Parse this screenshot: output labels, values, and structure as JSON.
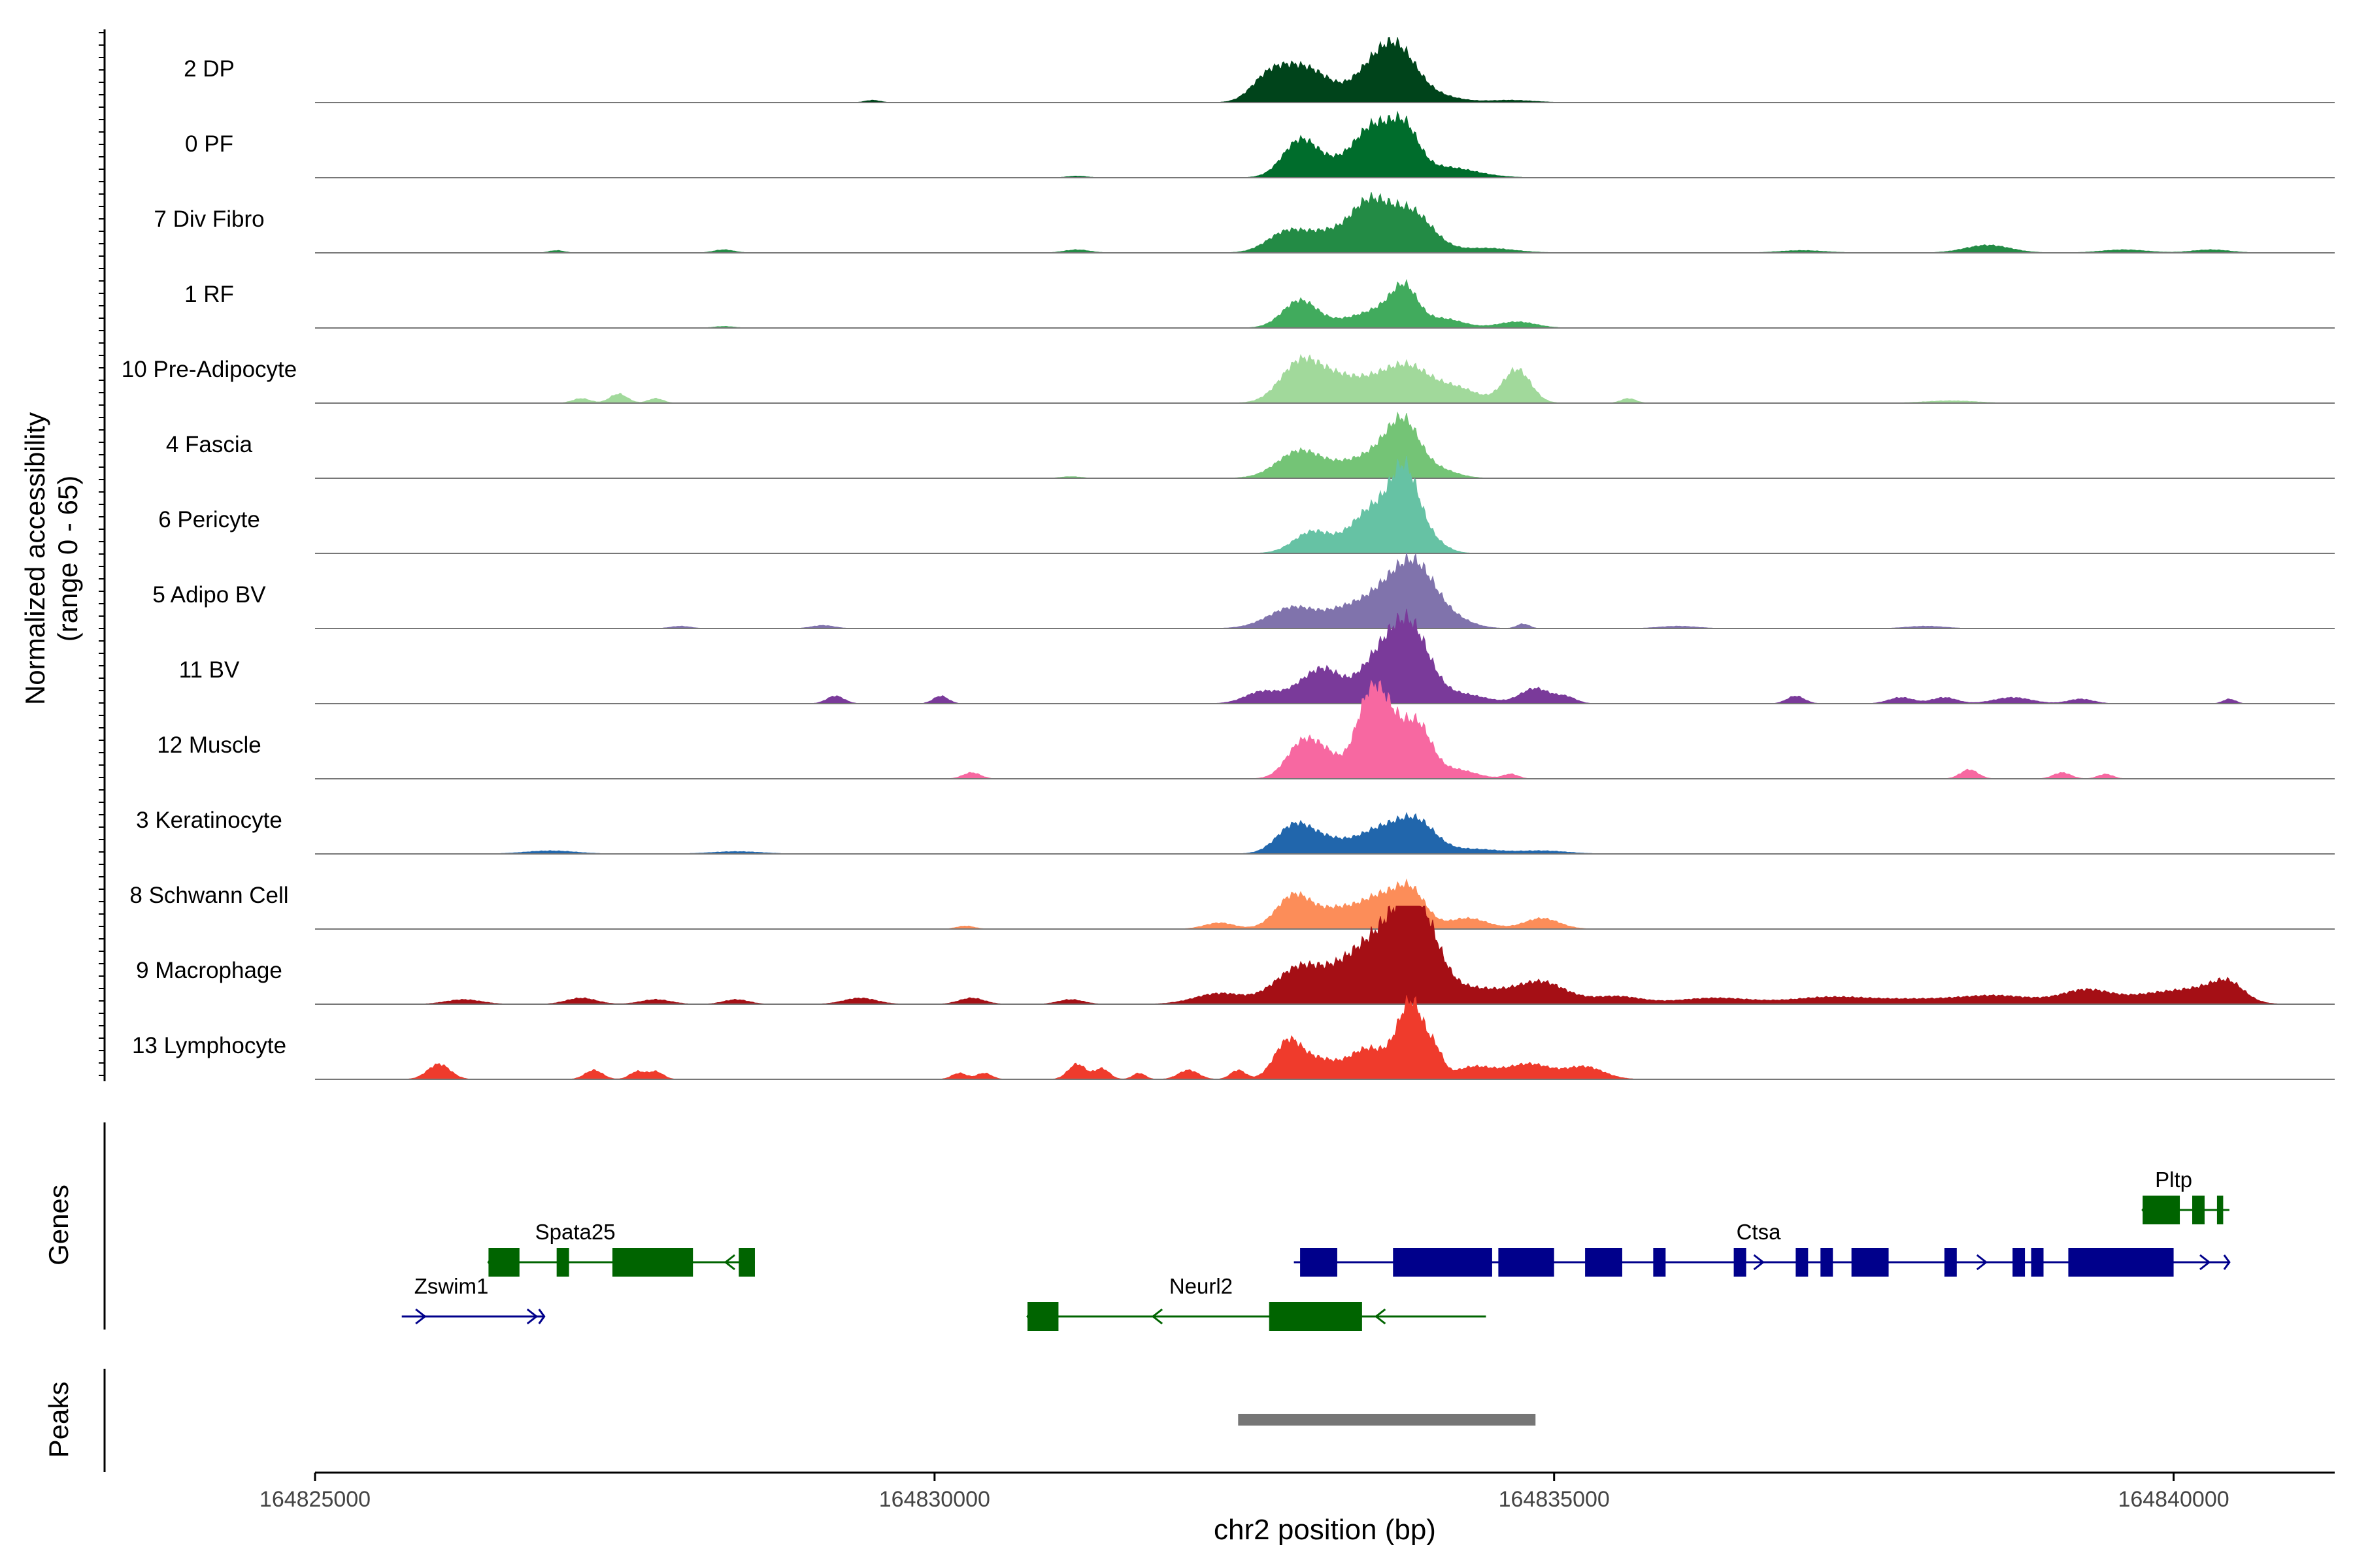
{
  "chart_data": {
    "type": "area",
    "title": "",
    "ylabel": "Normalized accessibility",
    "ylabel_range": "(range 0 - 65)",
    "ylim": [
      0,
      65
    ],
    "xlabel": "chr2 position (bp)",
    "xlim": [
      164825000,
      164841300
    ],
    "x_ticks": [
      164825000,
      164830000,
      164835000,
      164840000
    ],
    "x_tick_labels": [
      "164825000",
      "164830000",
      "164835000",
      "164840000"
    ],
    "track_labels": {
      "genes": "Genes",
      "peaks": "Peaks"
    },
    "series": [
      {
        "name": "2 DP",
        "color": "#00441b",
        "peaks": [
          [
            164829500,
            1.5,
            60
          ],
          [
            164832650,
            8,
            120
          ],
          [
            164832850,
            21,
            170
          ],
          [
            164833100,
            12,
            140
          ],
          [
            164833550,
            22,
            180
          ],
          [
            164833750,
            24,
            150
          ],
          [
            164834000,
            5,
            200
          ],
          [
            164834650,
            1.5,
            180
          ]
        ]
      },
      {
        "name": "0 PF",
        "color": "#006d2c",
        "peaks": [
          [
            164831150,
            1,
            80
          ],
          [
            164832950,
            24,
            140
          ],
          [
            164833250,
            8,
            160
          ],
          [
            164833550,
            32,
            150
          ],
          [
            164833800,
            26,
            110
          ],
          [
            164834100,
            7,
            250
          ]
        ]
      },
      {
        "name": "7 Div Fibro",
        "color": "#238b45",
        "peaks": [
          [
            164826950,
            1.5,
            60
          ],
          [
            164828300,
            2,
            80
          ],
          [
            164831150,
            2,
            100
          ],
          [
            164832850,
            14,
            160
          ],
          [
            164833150,
            10,
            140
          ],
          [
            164833500,
            32,
            160
          ],
          [
            164833850,
            26,
            170
          ],
          [
            164834450,
            3,
            220
          ],
          [
            164837000,
            1.5,
            180
          ],
          [
            164838500,
            5,
            180
          ],
          [
            164839600,
            2,
            180
          ],
          [
            164840300,
            2,
            150
          ]
        ]
      },
      {
        "name": "1 RF",
        "color": "#41ab5d",
        "peaks": [
          [
            164828300,
            1,
            80
          ],
          [
            164832950,
            18,
            140
          ],
          [
            164833350,
            5,
            160
          ],
          [
            164833650,
            12,
            160
          ],
          [
            164833800,
            20,
            100
          ],
          [
            164834100,
            6,
            160
          ],
          [
            164834700,
            4,
            150
          ]
        ]
      },
      {
        "name": "10 Pre-Adipocyte",
        "color": "#a1d99b",
        "peaks": [
          [
            164827150,
            3,
            70
          ],
          [
            164827450,
            6,
            70
          ],
          [
            164827750,
            3,
            60
          ],
          [
            164832950,
            26,
            160
          ],
          [
            164833250,
            14,
            170
          ],
          [
            164833600,
            14,
            180
          ],
          [
            164833850,
            18,
            160
          ],
          [
            164834200,
            10,
            180
          ],
          [
            164834700,
            22,
            110
          ],
          [
            164835600,
            3,
            60
          ],
          [
            164838200,
            1.5,
            200
          ]
        ]
      },
      {
        "name": "4 Fascia",
        "color": "#74c476",
        "peaks": [
          [
            164831100,
            1,
            80
          ],
          [
            164832950,
            18,
            180
          ],
          [
            164833350,
            8,
            160
          ],
          [
            164833650,
            18,
            160
          ],
          [
            164833800,
            26,
            120
          ],
          [
            164834050,
            6,
            150
          ]
        ]
      },
      {
        "name": "6 Pericyte",
        "color": "#66c2a4",
        "peaks": [
          [
            164833050,
            14,
            150
          ],
          [
            164833550,
            30,
            180
          ],
          [
            164833800,
            45,
            110
          ],
          [
            164834000,
            8,
            120
          ]
        ]
      },
      {
        "name": "5 Adipo BV",
        "color": "#8073ac",
        "peaks": [
          [
            164827950,
            1.5,
            80
          ],
          [
            164829100,
            2,
            90
          ],
          [
            164832900,
            14,
            200
          ],
          [
            164833300,
            8,
            150
          ],
          [
            164833650,
            24,
            200
          ],
          [
            164833900,
            32,
            160
          ],
          [
            164834200,
            5,
            150
          ],
          [
            164834750,
            3,
            50
          ],
          [
            164836000,
            1.5,
            150
          ],
          [
            164838000,
            1.5,
            150
          ]
        ]
      },
      {
        "name": "11 BV",
        "color": "#7a3a9a",
        "peaks": [
          [
            164829200,
            5,
            70
          ],
          [
            164830050,
            5,
            60
          ],
          [
            164832650,
            8,
            140
          ],
          [
            164832950,
            8,
            120
          ],
          [
            164833150,
            20,
            130
          ],
          [
            164833600,
            30,
            180
          ],
          [
            164833850,
            42,
            150
          ],
          [
            164834250,
            6,
            200
          ],
          [
            164834850,
            10,
            120
          ],
          [
            164835100,
            4,
            80
          ],
          [
            164836950,
            5,
            70
          ],
          [
            164837800,
            4,
            100
          ],
          [
            164838150,
            4,
            100
          ],
          [
            164838700,
            4,
            150
          ],
          [
            164839250,
            3,
            100
          ],
          [
            164840450,
            3,
            50
          ]
        ]
      },
      {
        "name": "12 Muscle",
        "color": "#f768a1",
        "peaks": [
          [
            164830300,
            4,
            70
          ],
          [
            164832950,
            20,
            120
          ],
          [
            164833150,
            16,
            130
          ],
          [
            164833450,
            16,
            100
          ],
          [
            164833550,
            45,
            110
          ],
          [
            164833700,
            22,
            100
          ],
          [
            164833900,
            34,
            110
          ],
          [
            164834200,
            6,
            160
          ],
          [
            164834650,
            3,
            60
          ],
          [
            164838350,
            6,
            70
          ],
          [
            164839100,
            4,
            70
          ],
          [
            164839450,
            3,
            60
          ]
        ]
      },
      {
        "name": "3 Keratinocyte",
        "color": "#2166ac",
        "peaks": [
          [
            164826900,
            2,
            200
          ],
          [
            164828400,
            1.5,
            200
          ],
          [
            164832900,
            18,
            140
          ],
          [
            164833150,
            8,
            150
          ],
          [
            164833600,
            16,
            200
          ],
          [
            164833900,
            18,
            150
          ],
          [
            164834350,
            3,
            200
          ],
          [
            164834900,
            2,
            200
          ]
        ]
      },
      {
        "name": "8 Schwann Cell",
        "color": "#fc8d59",
        "peaks": [
          [
            164830250,
            2,
            70
          ],
          [
            164832300,
            4,
            120
          ],
          [
            164832900,
            22,
            140
          ],
          [
            164833250,
            12,
            160
          ],
          [
            164833600,
            20,
            160
          ],
          [
            164833850,
            22,
            120
          ],
          [
            164834300,
            7,
            160
          ],
          [
            164834900,
            7,
            140
          ]
        ]
      },
      {
        "name": "9 Macrophage",
        "color": "#a50f15",
        "peaks": [
          [
            164826200,
            3,
            140
          ],
          [
            164827150,
            4,
            120
          ],
          [
            164827750,
            3,
            120
          ],
          [
            164828400,
            3,
            100
          ],
          [
            164829400,
            4,
            130
          ],
          [
            164830300,
            4,
            100
          ],
          [
            164831100,
            3,
            100
          ],
          [
            164832300,
            7,
            200
          ],
          [
            164832950,
            24,
            200
          ],
          [
            164833350,
            18,
            180
          ],
          [
            164833650,
            38,
            200
          ],
          [
            164833900,
            52,
            160
          ],
          [
            164834350,
            10,
            250
          ],
          [
            164834900,
            14,
            200
          ],
          [
            164835500,
            5,
            200
          ],
          [
            164836300,
            4,
            300
          ],
          [
            164837200,
            4,
            300
          ],
          [
            164837900,
            3,
            400
          ],
          [
            164838600,
            5,
            300
          ],
          [
            164839300,
            9,
            200
          ],
          [
            164839900,
            7,
            250
          ],
          [
            164840300,
            8,
            200
          ],
          [
            164840450,
            9,
            120
          ]
        ]
      },
      {
        "name": "13 Lymphocyte",
        "color": "#ef3b2c",
        "peaks": [
          [
            164826000,
            10,
            90
          ],
          [
            164827250,
            6,
            70
          ],
          [
            164827600,
            5,
            60
          ],
          [
            164827750,
            5,
            60
          ],
          [
            164830200,
            4,
            60
          ],
          [
            164830400,
            4,
            60
          ],
          [
            164831150,
            10,
            70
          ],
          [
            164831350,
            7,
            60
          ],
          [
            164831650,
            4,
            50
          ],
          [
            164832050,
            6,
            80
          ],
          [
            164832450,
            6,
            60
          ],
          [
            164832850,
            24,
            110
          ],
          [
            164833100,
            12,
            140
          ],
          [
            164833500,
            20,
            160
          ],
          [
            164833850,
            50,
            110
          ],
          [
            164834050,
            12,
            60
          ],
          [
            164834350,
            8,
            160
          ],
          [
            164834800,
            10,
            180
          ],
          [
            164835250,
            8,
            150
          ]
        ]
      }
    ],
    "genes": [
      {
        "name": "Zswim1",
        "strand": "+",
        "color": "#00008b",
        "row": 3,
        "start": 164825700,
        "end": 164826850,
        "exons": [],
        "label_x": 164826100
      },
      {
        "name": "Spata25",
        "strand": "-",
        "color": "#006400",
        "row": 2,
        "start": 164826400,
        "end": 164828550,
        "exons": [
          [
            164826400,
            164826650
          ],
          [
            164826950,
            164827050
          ],
          [
            164827400,
            164828050
          ],
          [
            164828420,
            164828550
          ]
        ],
        "label_x": 164827100
      },
      {
        "name": "Neurl2",
        "strand": "-",
        "color": "#006400",
        "row": 3,
        "start": 164830750,
        "end": 164834450,
        "exons": [
          [
            164830750,
            164831000
          ],
          [
            164832700,
            164833450
          ]
        ],
        "label_x": 164832150
      },
      {
        "name": "Ctsa",
        "strand": "+",
        "color": "#00008b",
        "row": 2,
        "start": 164832900,
        "end": 164840450,
        "exons": [
          [
            164832950,
            164833250
          ],
          [
            164833700,
            164834500
          ],
          [
            164834550,
            164835000
          ],
          [
            164835250,
            164835550
          ],
          [
            164835800,
            164835900
          ],
          [
            164836450,
            164836550
          ],
          [
            164836950,
            164837050
          ],
          [
            164837150,
            164837250
          ],
          [
            164837400,
            164837700
          ],
          [
            164838150,
            164838250
          ],
          [
            164838700,
            164838800
          ],
          [
            164838850,
            164838950
          ],
          [
            164839150,
            164840000
          ]
        ],
        "label_x": 164836650
      },
      {
        "name": "Pltp",
        "strand": "-",
        "color": "#006400",
        "row": 1,
        "start": 164839750,
        "end": 164840450,
        "exons": [
          [
            164839750,
            164840050
          ],
          [
            164840150,
            164840250
          ],
          [
            164840350,
            164840400
          ]
        ],
        "label_x": 164840000
      }
    ],
    "peaks_track": [
      {
        "start": 164832450,
        "end": 164834850,
        "color": "#767676"
      }
    ]
  }
}
